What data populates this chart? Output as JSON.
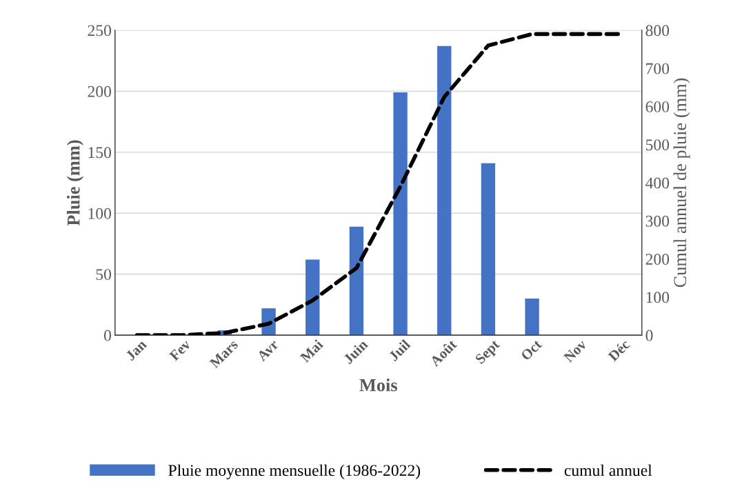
{
  "chart_data": {
    "type": "bar",
    "xlabel": "Mois",
    "ylabel": "Pluie (mm)",
    "y2label": "Cumul annuel de pluie (mm)",
    "categories": [
      "Jan",
      "Fev",
      "Mars",
      "Avr",
      "Mai",
      "Juin",
      "Juil",
      "Août",
      "Sept",
      "Oct",
      "Nov",
      "Déc"
    ],
    "series": [
      {
        "name": "Pluie moyenne mensuelle (1986-2022)",
        "color": "#4472c4",
        "values": [
          0,
          0,
          4,
          22,
          62,
          89,
          199,
          237,
          141,
          30,
          0,
          0
        ]
      },
      {
        "name": "cumul annuel",
        "type": "line",
        "axis": "y2",
        "color": "#000000",
        "line_style": "dashed",
        "values": [
          0,
          0,
          6,
          30,
          91,
          176,
          390,
          625,
          760,
          790,
          790,
          790
        ]
      }
    ],
    "ylim": [
      0,
      250
    ],
    "yticks": [
      0,
      50,
      100,
      150,
      200,
      250
    ],
    "y2lim": [
      0,
      800
    ],
    "y2ticks": [
      0,
      100,
      200,
      300,
      400,
      500,
      600,
      700,
      800
    ],
    "grid": "y",
    "legend": "bottom"
  }
}
